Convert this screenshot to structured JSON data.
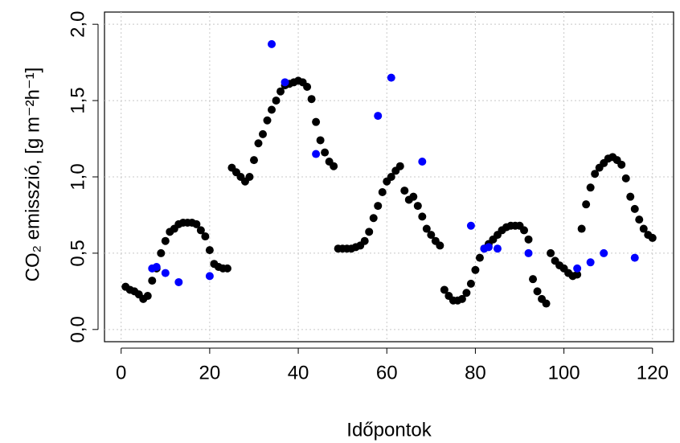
{
  "chart_data": {
    "type": "scatter",
    "xlabel": "Időpontok",
    "ylabel": "CO₂ emisszió, [g m⁻²h⁻¹]",
    "xlim": [
      -3.76,
      124.76
    ],
    "ylim": [
      -0.08,
      2.08
    ],
    "xticks": [
      0,
      20,
      40,
      60,
      80,
      100,
      120
    ],
    "yticks": [
      {
        "value": 0,
        "label": "0,0"
      },
      {
        "value": 0.5,
        "label": "0,5"
      },
      {
        "value": 1,
        "label": "1,0"
      },
      {
        "value": 1.5,
        "label": "1,5"
      },
      {
        "value": 2,
        "label": "2,0"
      }
    ],
    "grid": true,
    "series": [
      {
        "color": "#000000",
        "x": [
          1,
          2,
          3,
          4,
          5,
          6,
          7,
          8,
          9,
          10,
          11,
          12,
          13,
          14,
          15,
          16,
          17,
          18,
          19,
          20,
          21,
          22,
          23,
          24,
          25,
          26,
          27,
          28,
          29,
          30,
          31,
          32,
          33,
          34,
          35,
          36,
          37,
          38,
          39,
          40,
          41,
          42,
          43,
          44,
          45,
          46,
          47,
          48,
          49,
          50,
          51,
          52,
          53,
          54,
          55,
          56,
          57,
          58,
          59,
          60,
          61,
          62,
          63,
          64,
          65,
          66,
          67,
          68,
          69,
          70,
          71,
          72,
          73,
          74,
          75,
          76,
          77,
          78,
          79,
          80,
          81,
          82,
          83,
          84,
          85,
          86,
          87,
          88,
          89,
          90,
          91,
          92,
          93,
          94,
          95,
          96,
          97,
          98,
          99,
          100,
          101,
          102,
          103,
          104,
          105,
          106,
          107,
          108,
          109,
          110,
          111,
          112,
          113,
          114,
          115,
          116,
          117,
          118,
          119,
          120
        ],
        "values": [
          0.28,
          0.26,
          0.25,
          0.23,
          0.2,
          0.22,
          0.32,
          0.4,
          0.5,
          0.58,
          0.64,
          0.66,
          0.69,
          0.7,
          0.7,
          0.7,
          0.69,
          0.65,
          0.61,
          0.52,
          0.43,
          0.41,
          0.4,
          0.4,
          1.06,
          1.03,
          1.0,
          0.97,
          1.0,
          1.11,
          1.22,
          1.28,
          1.37,
          1.44,
          1.5,
          1.56,
          1.6,
          1.61,
          1.62,
          1.63,
          1.62,
          1.59,
          1.51,
          1.36,
          1.24,
          1.16,
          1.1,
          1.07,
          0.53,
          0.53,
          0.53,
          0.53,
          0.54,
          0.55,
          0.58,
          0.64,
          0.73,
          0.81,
          0.9,
          0.97,
          1.0,
          1.04,
          1.07,
          0.91,
          0.85,
          0.87,
          0.81,
          0.74,
          0.66,
          0.62,
          0.58,
          0.55,
          0.26,
          0.22,
          0.19,
          0.19,
          0.2,
          0.24,
          0.3,
          0.39,
          0.47,
          0.53,
          0.56,
          0.59,
          0.62,
          0.65,
          0.67,
          0.68,
          0.68,
          0.68,
          0.65,
          0.59,
          0.33,
          0.25,
          0.2,
          0.17,
          0.5,
          0.45,
          0.42,
          0.4,
          0.37,
          0.35,
          0.36,
          0.66,
          0.82,
          0.93,
          1.02,
          1.06,
          1.09,
          1.12,
          1.13,
          1.11,
          1.08,
          0.99,
          0.87,
          0.79,
          0.72,
          0.66,
          0.62,
          0.6
        ]
      },
      {
        "color": "#0000ff",
        "x": [
          7,
          8,
          10,
          13,
          20,
          34,
          37,
          44,
          58,
          61,
          68,
          79,
          82,
          83,
          85,
          92,
          103,
          106,
          109,
          116
        ],
        "values": [
          0.4,
          0.41,
          0.37,
          0.31,
          0.35,
          1.87,
          1.62,
          1.15,
          1.4,
          1.65,
          1.1,
          0.68,
          0.53,
          0.54,
          0.53,
          0.5,
          0.4,
          0.44,
          0.5,
          0.47
        ]
      }
    ]
  }
}
